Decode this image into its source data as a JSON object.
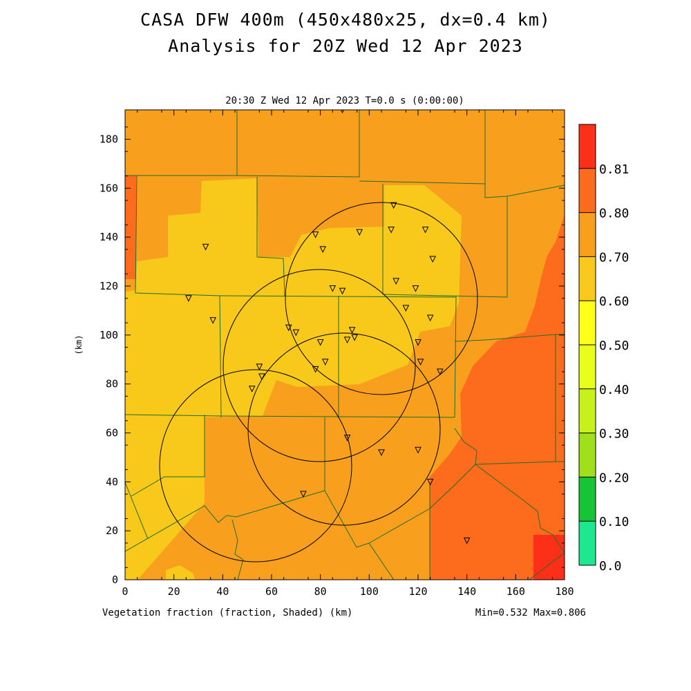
{
  "title_line1": "CASA DFW 400m (450x480x25, dx=0.4 km)",
  "title_line2": "Analysis for 20Z Wed 12 Apr 2023",
  "plot": {
    "time_label": "20:30 Z Wed 12 Apr 2023   T=0.0 s (0:00:00)",
    "x_axis_label": "Vegetation fraction (fraction, Shaded)  (km)",
    "y_axis_label": "(km)",
    "minmax_label": "Min=0.532 Max=0.806",
    "x_range": [
      0,
      180
    ],
    "y_range": [
      0,
      192
    ],
    "x_ticks": [
      0,
      20,
      40,
      60,
      80,
      100,
      120,
      140,
      160,
      180
    ],
    "y_ticks": [
      0,
      20,
      40,
      60,
      80,
      100,
      120,
      140,
      160,
      180
    ]
  },
  "colorbar": {
    "levels": [
      "0.0",
      "0.10",
      "0.20",
      "0.30",
      "0.40",
      "0.50",
      "0.60",
      "0.70",
      "0.80",
      "0.81"
    ],
    "colors": [
      "#1de890",
      "#16c436",
      "#a0e01a",
      "#c8f01a",
      "#e8ff1a",
      "#ffff1a",
      "#f8c81a",
      "#f8a01e",
      "#fc6c1c",
      "#fc3018"
    ]
  },
  "chart_data": {
    "type": "heatmap",
    "field": "Vegetation fraction",
    "units": "fraction",
    "min": 0.532,
    "max": 0.806,
    "radar_circles_center_km": [
      [
        104,
        116
      ],
      [
        79,
        89
      ],
      [
        89,
        63
      ],
      [
        53,
        48
      ]
    ],
    "radar_circle_radius_km": 39,
    "station_markers_km": [
      [
        33,
        136
      ],
      [
        26,
        115
      ],
      [
        36,
        106
      ],
      [
        78,
        141
      ],
      [
        81,
        135
      ],
      [
        96,
        142
      ],
      [
        109,
        143
      ],
      [
        110,
        153
      ],
      [
        123,
        143
      ],
      [
        126,
        131
      ],
      [
        111,
        122
      ],
      [
        119,
        119
      ],
      [
        85,
        119
      ],
      [
        89,
        118
      ],
      [
        115,
        111
      ],
      [
        125,
        107
      ],
      [
        67,
        103
      ],
      [
        70,
        101
      ],
      [
        93,
        102
      ],
      [
        91,
        98
      ],
      [
        94,
        99
      ],
      [
        80,
        97
      ],
      [
        120,
        97
      ],
      [
        82,
        89
      ],
      [
        78,
        86
      ],
      [
        121,
        89
      ],
      [
        129,
        85
      ],
      [
        55,
        87
      ],
      [
        56,
        83
      ],
      [
        52,
        78
      ],
      [
        91,
        58
      ],
      [
        105,
        52
      ],
      [
        120,
        53
      ],
      [
        125,
        40
      ],
      [
        73,
        35
      ],
      [
        140,
        16
      ],
      [
        89,
        192
      ]
    ]
  }
}
